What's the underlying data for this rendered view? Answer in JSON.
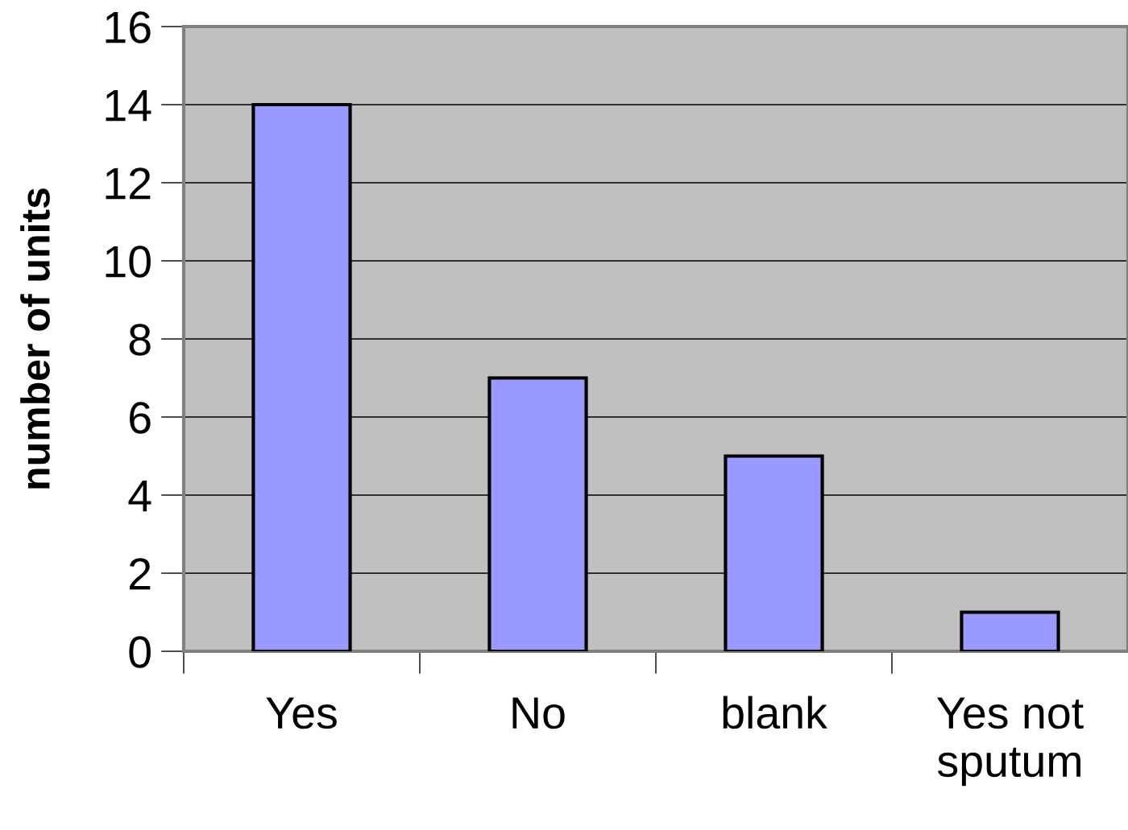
{
  "chart_data": {
    "type": "bar",
    "ylabel": "number of units",
    "categories": [
      "Yes",
      "No",
      "blank",
      "Yes not\nsputum"
    ],
    "values": [
      14,
      7,
      5,
      1
    ],
    "color": "#9999ff",
    "ylim": [
      0,
      16
    ],
    "yticks": [
      0,
      2,
      4,
      6,
      8,
      10,
      12,
      14,
      16
    ],
    "grid": "y"
  }
}
